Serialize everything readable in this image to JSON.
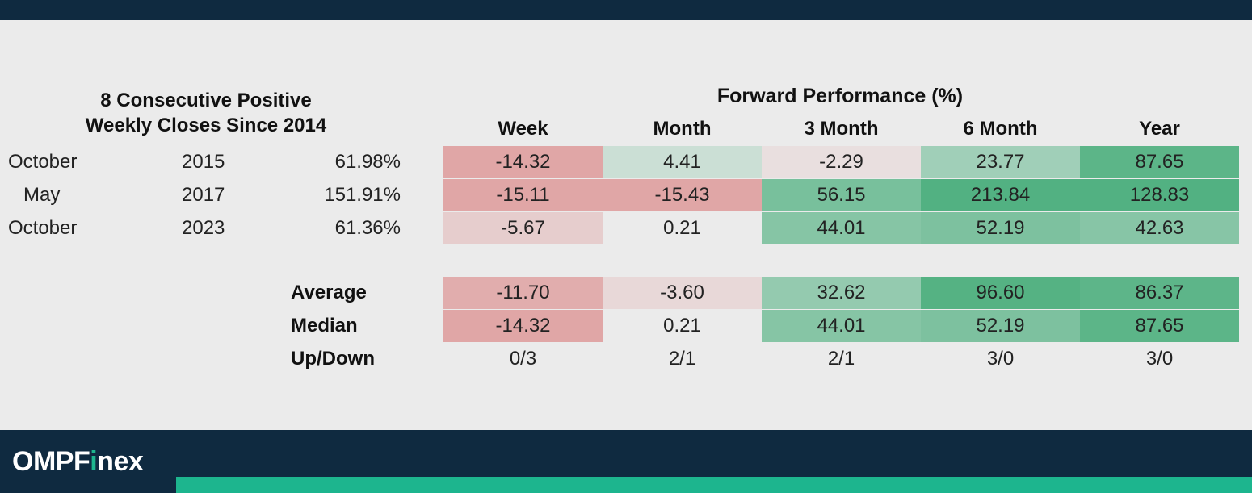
{
  "chart_data": {
    "type": "table",
    "title_line1": "8 Consecutive Positive",
    "title_line2": "Weekly Closes Since 2014",
    "header": "Forward Performance (%)",
    "columns": [
      "Week",
      "Month",
      "3 Month",
      "6 Month",
      "Year"
    ],
    "rows": [
      {
        "month": "October",
        "year": "2015",
        "gain": "61.98%",
        "values": [
          "-14.32",
          "4.41",
          "-2.29",
          "23.77",
          "87.65"
        ]
      },
      {
        "month": "May",
        "year": "2017",
        "gain": "151.91%",
        "values": [
          "-15.11",
          "-15.43",
          "56.15",
          "213.84",
          "128.83"
        ]
      },
      {
        "month": "October",
        "year": "2023",
        "gain": "61.36%",
        "values": [
          "-5.67",
          "0.21",
          "44.01",
          "52.19",
          "42.63"
        ]
      }
    ],
    "summary": [
      {
        "label": "Average",
        "values": [
          "-11.70",
          "-3.60",
          "32.62",
          "96.60",
          "86.37"
        ]
      },
      {
        "label": "Median",
        "values": [
          "-14.32",
          "0.21",
          "44.01",
          "52.19",
          "87.65"
        ]
      },
      {
        "label": "Up/Down",
        "values": [
          "0/3",
          "2/1",
          "2/1",
          "3/0",
          "3/0"
        ]
      }
    ],
    "colors": {
      "negative": "#e0a6a6",
      "positive": "#4aae7c"
    }
  },
  "brand": {
    "pre": "OMPF",
    "accent": "i",
    "post": "nex",
    "accent_color": "#1db58e"
  }
}
